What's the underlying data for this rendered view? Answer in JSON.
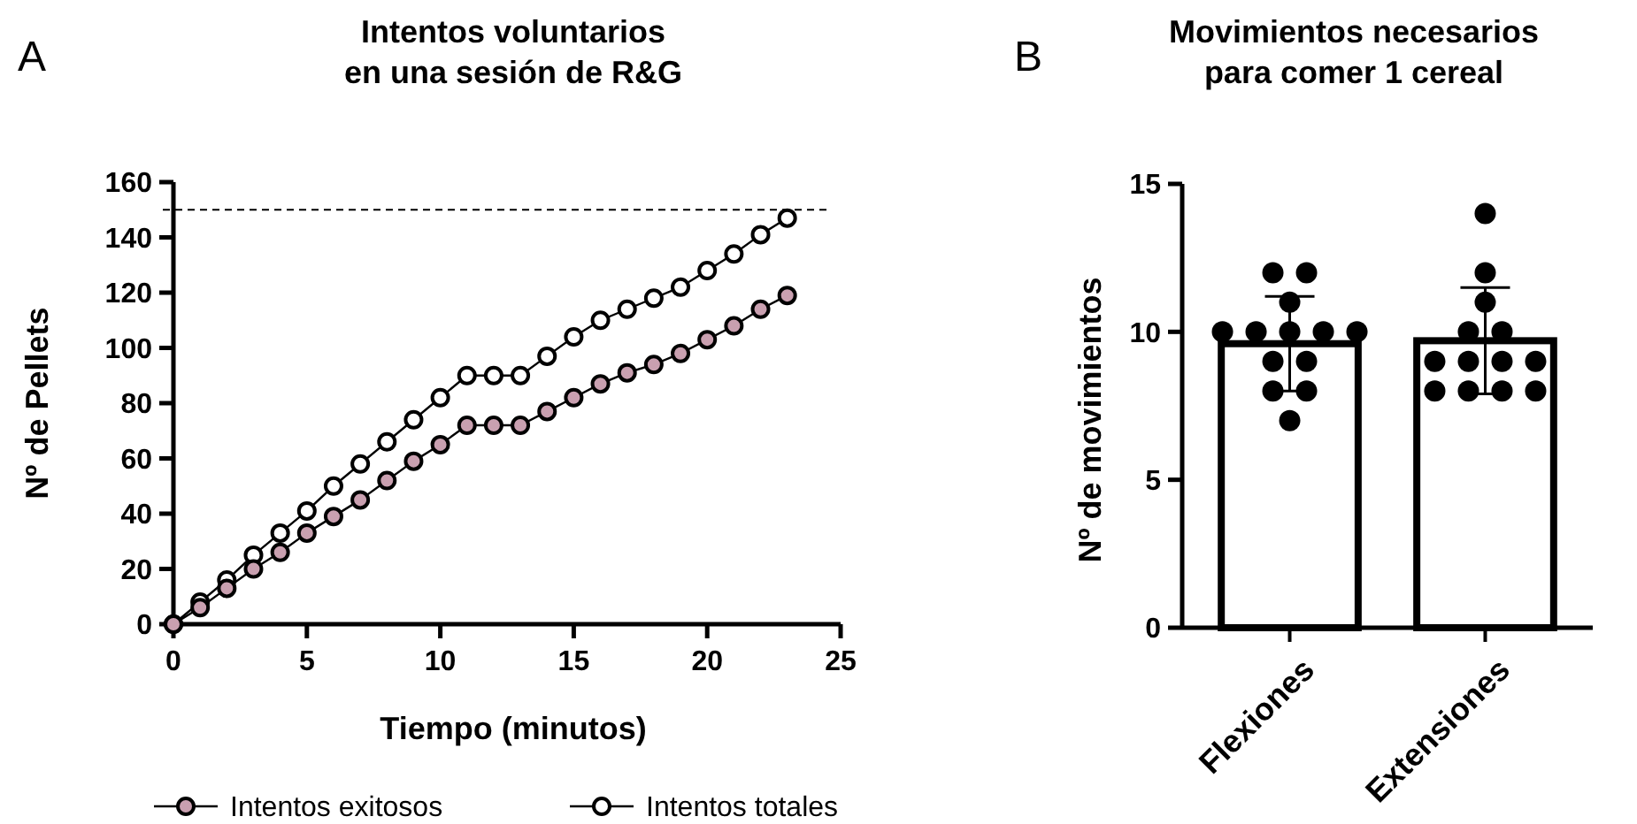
{
  "chart_data": [
    {
      "type": "line",
      "title": "Intentos voluntarios\nen una sesión de R&G",
      "xlabel": "Tiempo (minutos)",
      "ylabel": "Nº de Pellets",
      "x": [
        0,
        1,
        2,
        3,
        4,
        5,
        6,
        7,
        8,
        9,
        10,
        11,
        12,
        13,
        14,
        15,
        16,
        17,
        18,
        19,
        20,
        21,
        22,
        23
      ],
      "series": [
        {
          "name": "Intentos exitosos",
          "color": "#c9a0b0",
          "values": [
            0,
            6,
            13,
            20,
            26,
            33,
            39,
            45,
            52,
            59,
            65,
            72,
            72,
            72,
            77,
            82,
            87,
            91,
            94,
            98,
            103,
            108,
            114,
            119
          ]
        },
        {
          "name": "Intentos totales",
          "color": "#ffffff",
          "values": [
            0,
            8,
            16,
            25,
            33,
            41,
            50,
            58,
            66,
            74,
            82,
            90,
            90,
            90,
            97,
            104,
            110,
            114,
            118,
            122,
            128,
            134,
            141,
            147
          ]
        }
      ],
      "xlim": [
        0,
        25
      ],
      "xticks": [
        0,
        5,
        10,
        15,
        20,
        25
      ],
      "ylim": [
        0,
        160
      ],
      "yticks": [
        0,
        20,
        40,
        60,
        80,
        100,
        120,
        140,
        160
      ],
      "ref_lines": [
        {
          "axis": "y",
          "value": 150,
          "line_style": "dashed",
          "color": "#000000"
        }
      ],
      "marker": "circle",
      "legend": "bottom",
      "grid": false,
      "annotations": [
        "A"
      ]
    },
    {
      "type": "bar",
      "title": "Movimientos necesarios\npara comer 1 cereal",
      "ylabel": "Nº de movimientos",
      "categories": [
        "Flexiones",
        "Extensiones"
      ],
      "ylim": [
        0,
        15
      ],
      "yticks": [
        0,
        5,
        10,
        15
      ],
      "grid": false,
      "annotations": [
        "B"
      ],
      "series": [
        {
          "type": "bar",
          "color": "#ffffff",
          "values": [
            9.6,
            9.7
          ],
          "errors": [
            1.6,
            1.8
          ]
        },
        {
          "type": "scatter",
          "color": "#000000",
          "x": [
            "Flexiones",
            "Flexiones",
            "Flexiones",
            "Flexiones",
            "Flexiones",
            "Flexiones",
            "Flexiones",
            "Flexiones",
            "Flexiones",
            "Flexiones",
            "Flexiones",
            "Flexiones",
            "Flexiones",
            "Extensiones",
            "Extensiones",
            "Extensiones",
            "Extensiones",
            "Extensiones",
            "Extensiones",
            "Extensiones",
            "Extensiones",
            "Extensiones",
            "Extensiones",
            "Extensiones",
            "Extensiones",
            "Extensiones"
          ],
          "values": [
            12,
            12,
            11,
            10,
            10,
            10,
            10,
            10,
            9,
            9,
            8,
            8,
            7,
            14,
            12,
            11,
            10,
            10,
            9,
            9,
            9,
            9,
            8,
            8,
            8,
            8
          ]
        }
      ]
    }
  ]
}
